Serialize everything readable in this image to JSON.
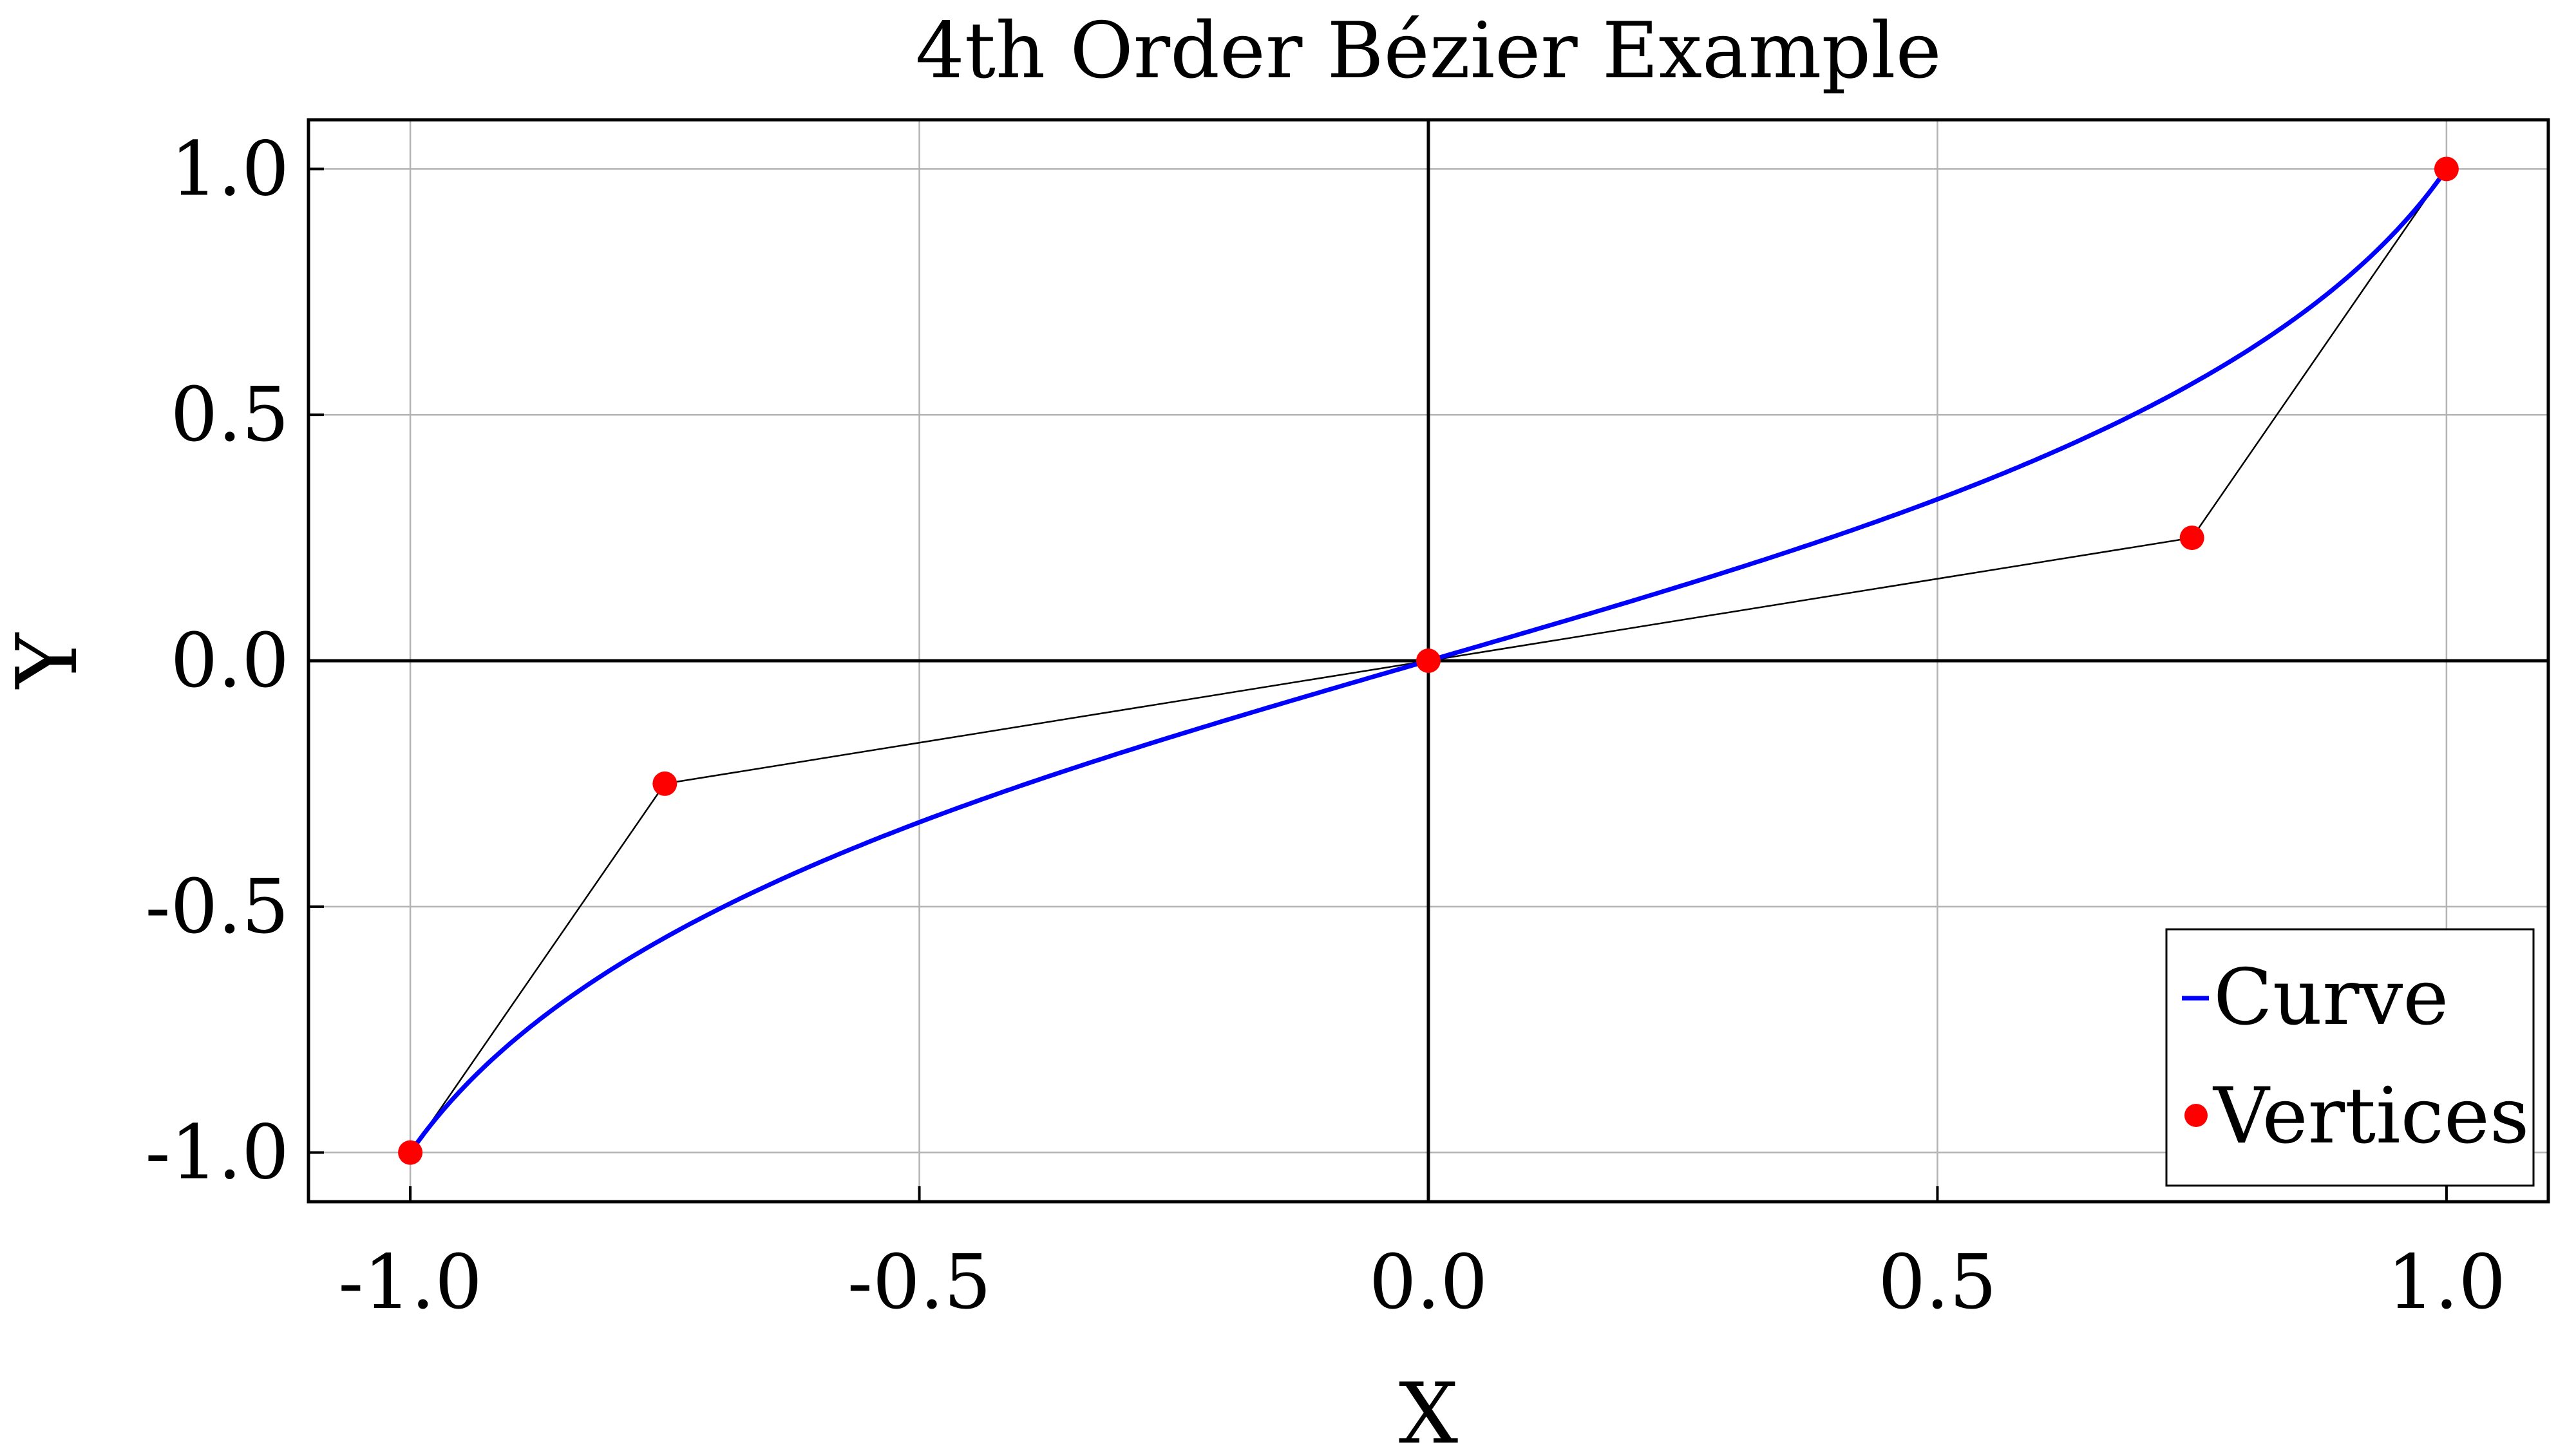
{
  "chart_data": {
    "type": "line",
    "title": "4th Order Bézier Example",
    "xlabel": "X",
    "ylabel": "Y",
    "xlim": [
      -1.1,
      1.1
    ],
    "ylim": [
      -1.1,
      1.1
    ],
    "grid": true,
    "legend_position": "bottom-right",
    "x_ticks": [
      -1.0,
      -0.5,
      0.0,
      0.5,
      1.0
    ],
    "y_ticks": [
      -1.0,
      -0.5,
      0.0,
      0.5,
      1.0
    ],
    "x_tick_labels": [
      "-1.0",
      "-0.5",
      "0.0",
      "0.5",
      "1.0"
    ],
    "y_tick_labels": [
      "-1.0",
      "-0.5",
      "0.0",
      "0.5",
      "1.0"
    ],
    "series": [
      {
        "name": "Curve",
        "type": "line",
        "color": "#0000ff",
        "bezier_control_points": [
          [
            -1.0,
            -1.0
          ],
          [
            -0.75,
            -0.25
          ],
          [
            0.0,
            0.0
          ],
          [
            0.75,
            0.25
          ],
          [
            1.0,
            1.0
          ]
        ]
      },
      {
        "name": "Vertices",
        "type": "scatter",
        "color": "#ff0000",
        "x": [
          -1.0,
          -0.75,
          0.0,
          0.75,
          1.0
        ],
        "y": [
          -1.0,
          -0.25,
          0.0,
          0.25,
          1.0
        ]
      }
    ],
    "control_polygon_color": "#000000",
    "zero_lines": true
  }
}
